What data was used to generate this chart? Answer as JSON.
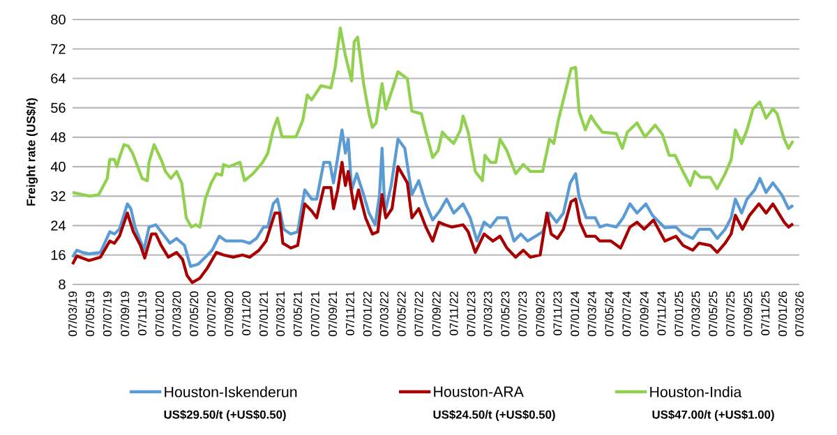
{
  "chart_data": {
    "type": "line",
    "ylabel": "Freight rate (US$/t)",
    "xlim": [
      "2019-03-07",
      "2026-03-07"
    ],
    "ylim": [
      8,
      80
    ],
    "yticks": [
      8,
      16,
      24,
      32,
      40,
      48,
      56,
      64,
      72,
      80
    ],
    "grid": "y",
    "legend": "bottom",
    "xticks": [
      {
        "value": "2019-03-07",
        "label": "07/03/19"
      },
      {
        "value": "2019-05-07",
        "label": "07/05/19"
      },
      {
        "value": "2019-07-07",
        "label": "07/07/19"
      },
      {
        "value": "2019-09-07",
        "label": "07/09/19"
      },
      {
        "value": "2019-11-07",
        "label": "07/11/19"
      },
      {
        "value": "2020-01-07",
        "label": "07/01/20"
      },
      {
        "value": "2020-03-07",
        "label": "07/03/20"
      },
      {
        "value": "2020-05-07",
        "label": "07/05/20"
      },
      {
        "value": "2020-07-07",
        "label": "07/07/20"
      },
      {
        "value": "2020-09-07",
        "label": "07/09/20"
      },
      {
        "value": "2020-11-07",
        "label": "07/11/20"
      },
      {
        "value": "2021-01-07",
        "label": "07/01/21"
      },
      {
        "value": "2021-03-07",
        "label": "07/03/21"
      },
      {
        "value": "2021-05-07",
        "label": "07/05/21"
      },
      {
        "value": "2021-07-07",
        "label": "07/07/21"
      },
      {
        "value": "2021-09-07",
        "label": "07/09/21"
      },
      {
        "value": "2021-11-07",
        "label": "07/11/21"
      },
      {
        "value": "2022-01-07",
        "label": "07/01/22"
      },
      {
        "value": "2022-03-07",
        "label": "07/03/22"
      },
      {
        "value": "2022-05-07",
        "label": "07/05/22"
      },
      {
        "value": "2022-07-07",
        "label": "07/07/22"
      },
      {
        "value": "2022-09-07",
        "label": "07/09/22"
      },
      {
        "value": "2022-11-07",
        "label": "07/11/22"
      },
      {
        "value": "2023-01-07",
        "label": "07/01/23"
      },
      {
        "value": "2023-03-07",
        "label": "07/03/23"
      },
      {
        "value": "2023-05-07",
        "label": "07/05/23"
      },
      {
        "value": "2023-07-07",
        "label": "07/07/23"
      },
      {
        "value": "2023-09-07",
        "label": "07/09/23"
      },
      {
        "value": "2023-11-07",
        "label": "07/11/23"
      },
      {
        "value": "2024-01-07",
        "label": "07/01/24"
      },
      {
        "value": "2024-03-07",
        "label": "07/03/24"
      },
      {
        "value": "2024-05-07",
        "label": "07/05/24"
      },
      {
        "value": "2024-07-07",
        "label": "07/07/24"
      },
      {
        "value": "2024-09-07",
        "label": "07/09/24"
      },
      {
        "value": "2024-11-07",
        "label": "07/11/24"
      },
      {
        "value": "2025-01-07",
        "label": "07/01/25"
      },
      {
        "value": "2025-03-07",
        "label": "07/03/25"
      },
      {
        "value": "2025-05-07",
        "label": "07/05/25"
      },
      {
        "value": "2025-07-07",
        "label": "07/07/25"
      },
      {
        "value": "2025-09-07",
        "label": "07/09/25"
      },
      {
        "value": "2025-11-07",
        "label": "07/11/25"
      },
      {
        "value": "2026-01-07",
        "label": "07/01/26"
      },
      {
        "value": "2026-03-07",
        "label": "07/03/26"
      }
    ],
    "annotations": [
      "US$29.50/t (+US$0.50)",
      "US$24.50/t (+US$0.50)",
      "US$47.00/t (+US$1.00)"
    ],
    "series": [
      {
        "name": "Houston-Iskenderun",
        "color": "#5b9bd5",
        "x": [
          "2019-03-07",
          "2019-03-22",
          "2019-04-10",
          "2019-05-04",
          "2019-06-13",
          "2019-07-16",
          "2019-08-01",
          "2019-08-19",
          "2019-09-16",
          "2019-09-28",
          "2019-10-13",
          "2019-11-01",
          "2019-11-13",
          "2019-12-01",
          "2019-12-25",
          "2020-01-19",
          "2020-02-13",
          "2020-03-07",
          "2020-04-04",
          "2020-04-25",
          "2020-05-22",
          "2020-06-16",
          "2020-07-10",
          "2020-08-04",
          "2020-08-28",
          "2020-09-22",
          "2020-10-25",
          "2020-11-19",
          "2020-12-13",
          "2021-01-07",
          "2021-01-22",
          "2021-02-10",
          "2021-02-25",
          "2021-03-19",
          "2021-04-13",
          "2021-05-07",
          "2021-06-01",
          "2021-06-25",
          "2021-07-13",
          "2021-08-07",
          "2021-08-28",
          "2021-09-10",
          "2021-09-25",
          "2021-10-10",
          "2021-10-22",
          "2021-11-01",
          "2021-11-13",
          "2021-12-01",
          "2021-12-25",
          "2022-01-13",
          "2022-02-04",
          "2022-02-19",
          "2022-02-28",
          "2022-03-10",
          "2022-04-01",
          "2022-04-25",
          "2022-05-19",
          "2022-06-13",
          "2022-07-07",
          "2022-08-01",
          "2022-08-25",
          "2022-09-19",
          "2022-10-13",
          "2022-11-07",
          "2022-12-10",
          "2023-01-04",
          "2023-01-28",
          "2023-02-22",
          "2023-03-16",
          "2023-04-10",
          "2023-05-13",
          "2023-06-07",
          "2023-07-01",
          "2023-07-25",
          "2023-08-22",
          "2023-09-16",
          "2023-10-10",
          "2023-11-04",
          "2023-11-28",
          "2023-12-22",
          "2024-01-10",
          "2024-01-22",
          "2024-02-16",
          "2024-03-19",
          "2024-04-04",
          "2024-04-28",
          "2024-06-01",
          "2024-06-25",
          "2024-07-19",
          "2024-08-13",
          "2024-09-13",
          "2024-10-07",
          "2024-11-19",
          "2024-12-28",
          "2025-01-22",
          "2025-02-25",
          "2025-03-19",
          "2025-04-28",
          "2025-05-22",
          "2025-06-19",
          "2025-07-10",
          "2025-07-25",
          "2025-08-16",
          "2025-09-04",
          "2025-10-01",
          "2025-10-19",
          "2025-11-10",
          "2025-12-04",
          "2026-01-04",
          "2026-01-28",
          "2026-02-13"
        ],
        "values": [
          15.4,
          17.3,
          16.7,
          16.3,
          16.7,
          22.3,
          21.7,
          23,
          29.9,
          28.6,
          23.6,
          19.8,
          17.3,
          23.6,
          24.2,
          21.7,
          19.2,
          20.5,
          18.6,
          12.9,
          13.5,
          15.4,
          17.3,
          21.1,
          19.8,
          19.8,
          19.8,
          19.2,
          20.5,
          23.6,
          23.6,
          29.9,
          31.2,
          23,
          21.7,
          22.3,
          33.7,
          31.2,
          31.2,
          41.2,
          41.2,
          35.6,
          42.5,
          50,
          43.7,
          47.5,
          33.7,
          38.1,
          32.4,
          27.4,
          24.2,
          32.4,
          45,
          27.4,
          34.9,
          47.5,
          45,
          32.4,
          36.2,
          29.9,
          25.5,
          28,
          31.2,
          27.4,
          29.9,
          26.1,
          19.8,
          24.9,
          23.6,
          26.1,
          26.1,
          19.8,
          21.7,
          19.8,
          21.1,
          22.3,
          27.4,
          24.9,
          27.4,
          35.6,
          38.1,
          31.8,
          26.1,
          26.1,
          23.6,
          24.2,
          23.6,
          26.1,
          29.9,
          27.4,
          29.9,
          26.7,
          23.4,
          23.6,
          21.7,
          20.5,
          23,
          23,
          20.5,
          23,
          26.1,
          31.2,
          27.4,
          31.2,
          33.7,
          36.8,
          33,
          35.6,
          32.4,
          28.6,
          29.5
        ]
      },
      {
        "name": "Houston-ARA",
        "color": "#a80000",
        "x": [
          "2019-03-07",
          "2019-03-22",
          "2019-05-04",
          "2019-06-13",
          "2019-07-16",
          "2019-08-01",
          "2019-08-19",
          "2019-09-16",
          "2019-10-07",
          "2019-11-01",
          "2019-11-16",
          "2019-12-10",
          "2019-12-25",
          "2020-01-13",
          "2020-02-07",
          "2020-03-07",
          "2020-03-28",
          "2020-04-13",
          "2020-05-01",
          "2020-05-28",
          "2020-06-22",
          "2020-07-25",
          "2020-08-19",
          "2020-09-22",
          "2020-10-25",
          "2020-11-19",
          "2020-12-22",
          "2021-01-16",
          "2021-02-16",
          "2021-03-04",
          "2021-03-16",
          "2021-04-13",
          "2021-05-07",
          "2021-06-01",
          "2021-06-25",
          "2021-07-13",
          "2021-08-07",
          "2021-09-01",
          "2021-09-10",
          "2021-09-25",
          "2021-10-10",
          "2021-10-22",
          "2021-11-01",
          "2021-11-22",
          "2021-12-07",
          "2022-01-01",
          "2022-01-25",
          "2022-02-13",
          "2022-02-28",
          "2022-03-13",
          "2022-04-04",
          "2022-04-25",
          "2022-05-28",
          "2022-06-13",
          "2022-07-07",
          "2022-08-01",
          "2022-08-25",
          "2022-09-16",
          "2022-10-07",
          "2022-11-01",
          "2022-12-10",
          "2022-12-28",
          "2023-01-22",
          "2023-02-22",
          "2023-03-25",
          "2023-04-19",
          "2023-05-13",
          "2023-06-13",
          "2023-07-10",
          "2023-08-04",
          "2023-09-07",
          "2023-10-01",
          "2023-10-16",
          "2023-11-07",
          "2023-11-28",
          "2023-12-25",
          "2024-01-10",
          "2024-01-25",
          "2024-02-16",
          "2024-03-19",
          "2024-04-04",
          "2024-05-13",
          "2024-06-16",
          "2024-07-19",
          "2024-08-13",
          "2024-09-07",
          "2024-10-10",
          "2024-11-19",
          "2024-12-28",
          "2025-01-22",
          "2025-02-25",
          "2025-03-19",
          "2025-04-28",
          "2025-05-22",
          "2025-06-19",
          "2025-07-10",
          "2025-07-25",
          "2025-08-19",
          "2025-09-13",
          "2025-10-16",
          "2025-11-10",
          "2025-12-04",
          "2026-01-13",
          "2026-01-28",
          "2026-02-13"
        ],
        "values": [
          13.5,
          15.7,
          14.5,
          15.4,
          19.8,
          19.2,
          21.1,
          27.4,
          22.3,
          18.6,
          15.2,
          21.7,
          21.7,
          18.6,
          15.4,
          16.7,
          14.8,
          10.4,
          8.5,
          9.7,
          12.3,
          16.7,
          16,
          15.4,
          16,
          15.4,
          17.3,
          19.8,
          27.4,
          27.4,
          19.2,
          17.9,
          18.6,
          29.9,
          28,
          26.1,
          34.3,
          34.3,
          28.6,
          33.7,
          41.2,
          34.9,
          38.7,
          28.6,
          33.7,
          26.1,
          21.7,
          22.3,
          32.4,
          26.1,
          28.6,
          40,
          35.6,
          26.1,
          28.6,
          23.6,
          19.8,
          24.9,
          24.2,
          23.6,
          24.2,
          22.3,
          16.7,
          21.7,
          19.8,
          21.1,
          17.9,
          15.4,
          17.3,
          15.4,
          16,
          27.4,
          21.7,
          20.5,
          23,
          30.5,
          31.2,
          24.9,
          21.1,
          21.1,
          19.8,
          19.8,
          17.9,
          23.6,
          24.9,
          23,
          25.5,
          19.8,
          21.1,
          18.6,
          17.3,
          19.2,
          18.6,
          16.7,
          19.2,
          21.7,
          26.8,
          23,
          26.8,
          29.9,
          27.4,
          29.9,
          24.9,
          23.6,
          24.5
        ]
      },
      {
        "name": "Houston-India",
        "color": "#92d050",
        "x": [
          "2019-03-07",
          "2019-05-07",
          "2019-06-07",
          "2019-07-07",
          "2019-07-16",
          "2019-08-01",
          "2019-08-10",
          "2019-08-19",
          "2019-09-04",
          "2019-09-19",
          "2019-10-04",
          "2019-10-22",
          "2019-11-07",
          "2019-11-25",
          "2019-12-01",
          "2019-12-19",
          "2020-01-13",
          "2020-01-28",
          "2020-02-16",
          "2020-03-07",
          "2020-03-25",
          "2020-04-10",
          "2020-04-28",
          "2020-05-13",
          "2020-05-28",
          "2020-06-16",
          "2020-07-07",
          "2020-07-25",
          "2020-08-13",
          "2020-08-19",
          "2020-09-07",
          "2020-10-16",
          "2020-11-01",
          "2020-12-01",
          "2021-01-04",
          "2021-01-22",
          "2021-02-10",
          "2021-02-25",
          "2021-03-13",
          "2021-05-01",
          "2021-05-25",
          "2021-06-10",
          "2021-06-25",
          "2021-07-28",
          "2021-09-01",
          "2021-09-16",
          "2021-10-04",
          "2021-10-22",
          "2021-11-13",
          "2021-11-22",
          "2021-12-04",
          "2021-12-25",
          "2022-01-13",
          "2022-01-25",
          "2022-02-07",
          "2022-02-28",
          "2022-03-13",
          "2022-04-01",
          "2022-04-25",
          "2022-05-28",
          "2022-06-13",
          "2022-07-16",
          "2022-08-01",
          "2022-08-25",
          "2022-09-13",
          "2022-09-28",
          "2022-10-13",
          "2022-11-07",
          "2022-12-01",
          "2022-12-10",
          "2022-12-28",
          "2023-01-22",
          "2023-02-16",
          "2023-02-25",
          "2023-03-16",
          "2023-04-04",
          "2023-04-19",
          "2023-05-13",
          "2023-06-13",
          "2023-07-10",
          "2023-08-04",
          "2023-09-16",
          "2023-10-10",
          "2023-10-25",
          "2023-11-10",
          "2023-12-04",
          "2023-12-25",
          "2024-01-10",
          "2024-01-22",
          "2024-02-13",
          "2024-03-04",
          "2024-03-19",
          "2024-04-13",
          "2024-06-01",
          "2024-06-22",
          "2024-07-10",
          "2024-08-13",
          "2024-09-10",
          "2024-10-16",
          "2024-11-10",
          "2024-12-04",
          "2024-12-25",
          "2025-01-13",
          "2025-02-16",
          "2025-03-04",
          "2025-03-25",
          "2025-04-28",
          "2025-05-22",
          "2025-06-19",
          "2025-07-10",
          "2025-07-25",
          "2025-08-16",
          "2025-09-04",
          "2025-09-25",
          "2025-10-19",
          "2025-11-10",
          "2025-12-04",
          "2025-12-19",
          "2026-01-13",
          "2026-01-28",
          "2026-02-13"
        ],
        "values": [
          33,
          32,
          32.4,
          36.8,
          42,
          42,
          40,
          42.5,
          46,
          45.6,
          43.7,
          40,
          36.8,
          36.2,
          41.2,
          46,
          41.9,
          38.7,
          36.8,
          38.7,
          35.6,
          26.1,
          23.6,
          24.2,
          23.6,
          31.2,
          35.6,
          38.1,
          37.7,
          40.6,
          40,
          41.2,
          36.2,
          38.1,
          41.2,
          43.7,
          50,
          53.2,
          48.1,
          48.1,
          52.6,
          59.5,
          58.2,
          62,
          61.4,
          67,
          77.7,
          70.2,
          63.3,
          74,
          75.2,
          62.6,
          54.4,
          50.7,
          51.9,
          62.6,
          55.7,
          60.1,
          65.8,
          63.9,
          55.1,
          54.4,
          49.4,
          42.5,
          44.4,
          49.4,
          48.1,
          46.3,
          50,
          53.8,
          49.4,
          38.7,
          36.2,
          43.1,
          41.2,
          41.2,
          47.5,
          44.4,
          38.1,
          40.6,
          38.7,
          38.7,
          47.5,
          46.3,
          52.6,
          60.1,
          66.7,
          67,
          55.1,
          50,
          53.8,
          51.9,
          49.4,
          49,
          45,
          49.4,
          51.9,
          48.1,
          51.3,
          48.8,
          43.1,
          43.1,
          40,
          34.9,
          38.7,
          37.1,
          37.1,
          34,
          38.1,
          41.9,
          50,
          46.3,
          50,
          55.7,
          57.6,
          53.2,
          55.7,
          54.4,
          47.5,
          45,
          47
        ]
      }
    ]
  }
}
